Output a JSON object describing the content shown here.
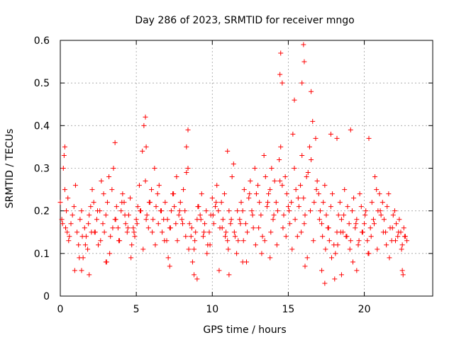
{
  "chart_data": {
    "type": "scatter",
    "title": "Day 286 of 2023, SRMTID for receiver mngo",
    "xlabel": "GPS time / hours",
    "ylabel": "SRMTID / TECUs",
    "xlim": [
      0,
      24.5
    ],
    "ylim": [
      0,
      0.6
    ],
    "xticks": [
      0,
      5,
      10,
      15,
      20
    ],
    "xtick_labels": [
      "0",
      "5",
      "10",
      "15",
      "20"
    ],
    "yticks": [
      0,
      0.1,
      0.2,
      0.3,
      0.4,
      0.5,
      0.6
    ],
    "ytick_labels": [
      "0",
      "0.1",
      "0.2",
      "0.3",
      "0.4",
      "0.5",
      "0.6"
    ],
    "grid": true,
    "marker": "+",
    "color": "#ff0000",
    "series": [
      {
        "name": "SRMTID",
        "x": [
          0.0,
          0.1,
          0.2,
          0.25,
          0.3,
          0.35,
          0.4,
          0.5,
          0.6,
          0.7,
          0.8,
          0.9,
          1.0,
          1.1,
          1.2,
          1.3,
          1.4,
          1.5,
          1.6,
          1.7,
          1.8,
          1.9,
          2.0,
          2.1,
          2.2,
          2.3,
          2.4,
          2.5,
          2.6,
          2.7,
          2.8,
          2.9,
          3.0,
          3.1,
          3.2,
          3.3,
          3.4,
          3.5,
          3.6,
          3.7,
          3.8,
          3.9,
          4.0,
          4.1,
          4.2,
          4.3,
          4.4,
          4.5,
          4.6,
          4.7,
          4.8,
          4.9,
          5.0,
          5.1,
          5.2,
          5.3,
          5.4,
          5.5,
          5.6,
          5.7,
          5.8,
          5.9,
          6.0,
          6.1,
          6.2,
          6.3,
          6.4,
          6.5,
          6.6,
          6.7,
          6.8,
          6.9,
          7.0,
          7.1,
          7.2,
          7.3,
          7.4,
          7.5,
          7.6,
          7.7,
          7.8,
          7.9,
          8.0,
          8.1,
          8.2,
          8.3,
          8.4,
          8.5,
          8.6,
          8.7,
          8.8,
          8.9,
          9.0,
          9.1,
          9.2,
          9.3,
          9.4,
          9.5,
          9.6,
          9.7,
          9.8,
          9.9,
          10.0,
          10.1,
          10.2,
          10.3,
          10.4,
          10.5,
          10.6,
          10.7,
          10.8,
          10.9,
          11.0,
          11.1,
          11.2,
          11.3,
          11.4,
          11.5,
          11.6,
          11.7,
          11.8,
          11.9,
          12.0,
          12.1,
          12.2,
          12.3,
          12.4,
          12.5,
          12.6,
          12.7,
          12.8,
          12.9,
          13.0,
          13.1,
          13.2,
          13.3,
          13.4,
          13.5,
          13.6,
          13.7,
          13.8,
          13.9,
          14.0,
          14.1,
          14.2,
          14.3,
          14.4,
          14.5,
          14.6,
          14.7,
          14.8,
          14.9,
          15.0,
          15.1,
          15.2,
          15.3,
          15.4,
          15.5,
          15.6,
          15.7,
          15.8,
          15.9,
          16.0,
          16.1,
          16.2,
          16.3,
          16.4,
          16.5,
          16.6,
          16.7,
          16.8,
          16.9,
          17.0,
          17.1,
          17.2,
          17.3,
          17.4,
          17.5,
          17.6,
          17.7,
          17.8,
          17.9,
          18.0,
          18.1,
          18.2,
          18.3,
          18.4,
          18.5,
          18.6,
          18.7,
          18.8,
          18.9,
          19.0,
          19.1,
          19.2,
          19.3,
          19.4,
          19.5,
          19.6,
          19.7,
          19.8,
          19.9,
          20.0,
          20.1,
          20.2,
          20.3,
          20.4,
          20.5,
          20.6,
          20.7,
          20.8,
          20.9,
          21.0,
          21.1,
          21.2,
          21.3,
          21.4,
          21.5,
          21.6,
          21.7,
          21.8,
          21.9,
          22.0,
          22.1,
          22.2,
          22.3,
          22.4,
          22.5,
          22.6,
          22.7,
          22.8,
          0.15,
          0.45,
          0.55,
          0.95,
          1.25,
          1.45,
          1.65,
          1.85,
          2.05,
          2.25,
          2.45,
          2.65,
          2.85,
          3.05,
          3.25,
          3.45,
          3.65,
          3.85,
          4.05,
          4.25,
          4.45,
          4.65,
          4.85,
          5.05,
          5.25,
          5.45,
          5.65,
          5.85,
          6.05,
          6.25,
          6.45,
          6.65,
          6.85,
          7.05,
          7.25,
          7.45,
          7.65,
          7.85,
          8.05,
          8.25,
          8.45,
          8.65,
          8.85,
          9.05,
          9.25,
          9.45,
          9.65,
          9.85,
          10.05,
          10.25,
          10.45,
          10.65,
          10.85,
          11.05,
          11.25,
          11.45,
          11.65,
          11.85,
          12.05,
          12.25,
          12.45,
          12.65,
          12.85,
          13.05,
          13.25,
          13.45,
          13.65,
          13.85,
          14.05,
          14.25,
          14.45,
          14.65,
          14.85,
          15.05,
          15.25,
          15.45,
          15.65,
          15.85,
          16.05,
          16.25,
          16.45,
          16.65,
          16.85,
          17.05,
          17.25,
          17.45,
          17.65,
          17.85,
          18.05,
          18.25,
          18.45,
          18.65,
          18.85,
          19.05,
          19.25,
          19.45,
          19.65,
          19.85,
          20.05,
          20.25,
          20.45,
          20.65,
          20.85,
          21.05,
          21.25,
          21.45,
          21.65,
          21.85,
          22.05,
          22.25,
          22.45,
          22.65,
          0.3,
          3.6,
          5.6,
          5.65,
          8.4,
          8.3,
          11.0,
          14.5,
          14.45,
          14.6,
          16.0,
          16.05,
          15.9,
          16.5,
          15.4,
          17.8,
          18.2,
          19.1,
          20.3,
          8.8,
          1.4,
          1.9,
          3.0,
          7.2,
          9.0,
          11.1,
          12.0,
          13.8,
          16.1,
          17.2,
          17.4,
          18.5,
          19.5,
          22.5,
          22.55
        ],
        "y": [
          0.22,
          0.18,
          0.3,
          0.33,
          0.25,
          0.16,
          0.2,
          0.23,
          0.14,
          0.17,
          0.19,
          0.21,
          0.26,
          0.15,
          0.12,
          0.18,
          0.2,
          0.09,
          0.16,
          0.14,
          0.11,
          0.19,
          0.21,
          0.25,
          0.22,
          0.15,
          0.18,
          0.12,
          0.2,
          0.27,
          0.17,
          0.15,
          0.19,
          0.22,
          0.28,
          0.14,
          0.25,
          0.3,
          0.18,
          0.21,
          0.16,
          0.13,
          0.2,
          0.24,
          0.22,
          0.17,
          0.15,
          0.19,
          0.23,
          0.12,
          0.16,
          0.14,
          0.18,
          0.21,
          0.26,
          0.2,
          0.34,
          0.4,
          0.27,
          0.19,
          0.16,
          0.22,
          0.25,
          0.18,
          0.3,
          0.21,
          0.24,
          0.26,
          0.2,
          0.15,
          0.18,
          0.22,
          0.13,
          0.09,
          0.16,
          0.2,
          0.24,
          0.21,
          0.17,
          0.13,
          0.19,
          0.22,
          0.18,
          0.25,
          0.2,
          0.29,
          0.3,
          0.17,
          0.14,
          0.08,
          0.11,
          0.15,
          0.18,
          0.21,
          0.19,
          0.24,
          0.14,
          0.17,
          0.2,
          0.12,
          0.15,
          0.19,
          0.23,
          0.17,
          0.21,
          0.26,
          0.2,
          0.16,
          0.22,
          0.18,
          0.24,
          0.15,
          0.13,
          0.2,
          0.17,
          0.28,
          0.31,
          0.14,
          0.1,
          0.13,
          0.18,
          0.22,
          0.2,
          0.25,
          0.17,
          0.15,
          0.23,
          0.27,
          0.2,
          0.16,
          0.3,
          0.24,
          0.26,
          0.22,
          0.19,
          0.14,
          0.33,
          0.28,
          0.21,
          0.24,
          0.25,
          0.3,
          0.18,
          0.27,
          0.22,
          0.2,
          0.32,
          0.35,
          0.26,
          0.19,
          0.28,
          0.24,
          0.21,
          0.17,
          0.22,
          0.38,
          0.3,
          0.25,
          0.14,
          0.21,
          0.26,
          0.33,
          0.23,
          0.19,
          0.28,
          0.29,
          0.35,
          0.32,
          0.41,
          0.22,
          0.37,
          0.27,
          0.24,
          0.2,
          0.17,
          0.22,
          0.26,
          0.19,
          0.16,
          0.13,
          0.21,
          0.24,
          0.12,
          0.1,
          0.15,
          0.19,
          0.22,
          0.18,
          0.15,
          0.25,
          0.14,
          0.21,
          0.17,
          0.13,
          0.2,
          0.23,
          0.16,
          0.18,
          0.12,
          0.24,
          0.21,
          0.15,
          0.17,
          0.2,
          0.13,
          0.1,
          0.16,
          0.22,
          0.18,
          0.28,
          0.25,
          0.2,
          0.24,
          0.19,
          0.22,
          0.18,
          0.15,
          0.21,
          0.24,
          0.16,
          0.13,
          0.19,
          0.2,
          0.17,
          0.14,
          0.18,
          0.15,
          0.12,
          0.16,
          0.14,
          0.13,
          0.17,
          0.15,
          0.13,
          0.06,
          0.09,
          0.14,
          0.12,
          0.17,
          0.15,
          0.15,
          0.2,
          0.13,
          0.24,
          0.08,
          0.1,
          0.16,
          0.18,
          0.13,
          0.22,
          0.19,
          0.16,
          0.09,
          0.15,
          0.17,
          0.2,
          0.11,
          0.18,
          0.22,
          0.15,
          0.12,
          0.17,
          0.2,
          0.13,
          0.18,
          0.16,
          0.24,
          0.28,
          0.2,
          0.17,
          0.14,
          0.11,
          0.16,
          0.13,
          0.21,
          0.18,
          0.15,
          0.1,
          0.12,
          0.19,
          0.22,
          0.06,
          0.16,
          0.14,
          0.11,
          0.18,
          0.15,
          0.2,
          0.17,
          0.13,
          0.08,
          0.24,
          0.19,
          0.12,
          0.16,
          0.1,
          0.13,
          0.22,
          0.15,
          0.19,
          0.12,
          0.27,
          0.16,
          0.14,
          0.2,
          0.11,
          0.18,
          0.23,
          0.15,
          0.17,
          0.09,
          0.2,
          0.13,
          0.25,
          0.18,
          0.14,
          0.11,
          0.16,
          0.09,
          0.04,
          0.12,
          0.15,
          0.19,
          0.14,
          0.11,
          0.08,
          0.17,
          0.13,
          0.15,
          0.19,
          0.1,
          0.14,
          0.17,
          0.11,
          0.2,
          0.15,
          0.12,
          0.09,
          0.16,
          0.13,
          0.15,
          0.11,
          0.14,
          0.35,
          0.36,
          0.42,
          0.35,
          0.39,
          0.35,
          0.34,
          0.57,
          0.52,
          0.5,
          0.59,
          0.55,
          0.5,
          0.48,
          0.46,
          0.38,
          0.37,
          0.39,
          0.37,
          0.05,
          0.06,
          0.05,
          0.08,
          0.07,
          0.04,
          0.05,
          0.08,
          0.09,
          0.07,
          0.06,
          0.03,
          0.05,
          0.06,
          0.06,
          0.05
        ]
      }
    ]
  }
}
